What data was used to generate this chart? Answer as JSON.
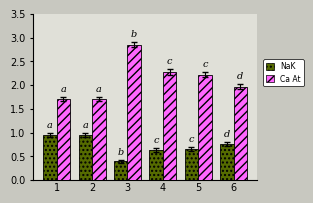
{
  "categories": [
    "1",
    "2",
    "3",
    "4",
    "5",
    "6"
  ],
  "nak_values": [
    0.95,
    0.95,
    0.4,
    0.63,
    0.65,
    0.77
  ],
  "nak_errors": [
    0.04,
    0.04,
    0.03,
    0.04,
    0.04,
    0.04
  ],
  "ca_values": [
    1.7,
    1.7,
    2.85,
    2.28,
    2.22,
    1.97
  ],
  "ca_errors": [
    0.04,
    0.04,
    0.05,
    0.06,
    0.05,
    0.05
  ],
  "nak_labels": [
    "a",
    "a",
    "b",
    "c",
    "c",
    "d"
  ],
  "ca_labels": [
    "a",
    "a",
    "b",
    "c",
    "c",
    "d"
  ],
  "nak_color": "#556b00",
  "ca_color": "#ff66ff",
  "ylim": [
    0,
    3.5
  ],
  "yticks": [
    0,
    0.5,
    1.0,
    1.5,
    2.0,
    2.5,
    3.0,
    3.5
  ],
  "legend_nak": "NaK",
  "legend_ca": "Ca At",
  "bar_width": 0.38,
  "bg_color": "#e8e8e0",
  "fig_bg": "#d8d8d0"
}
